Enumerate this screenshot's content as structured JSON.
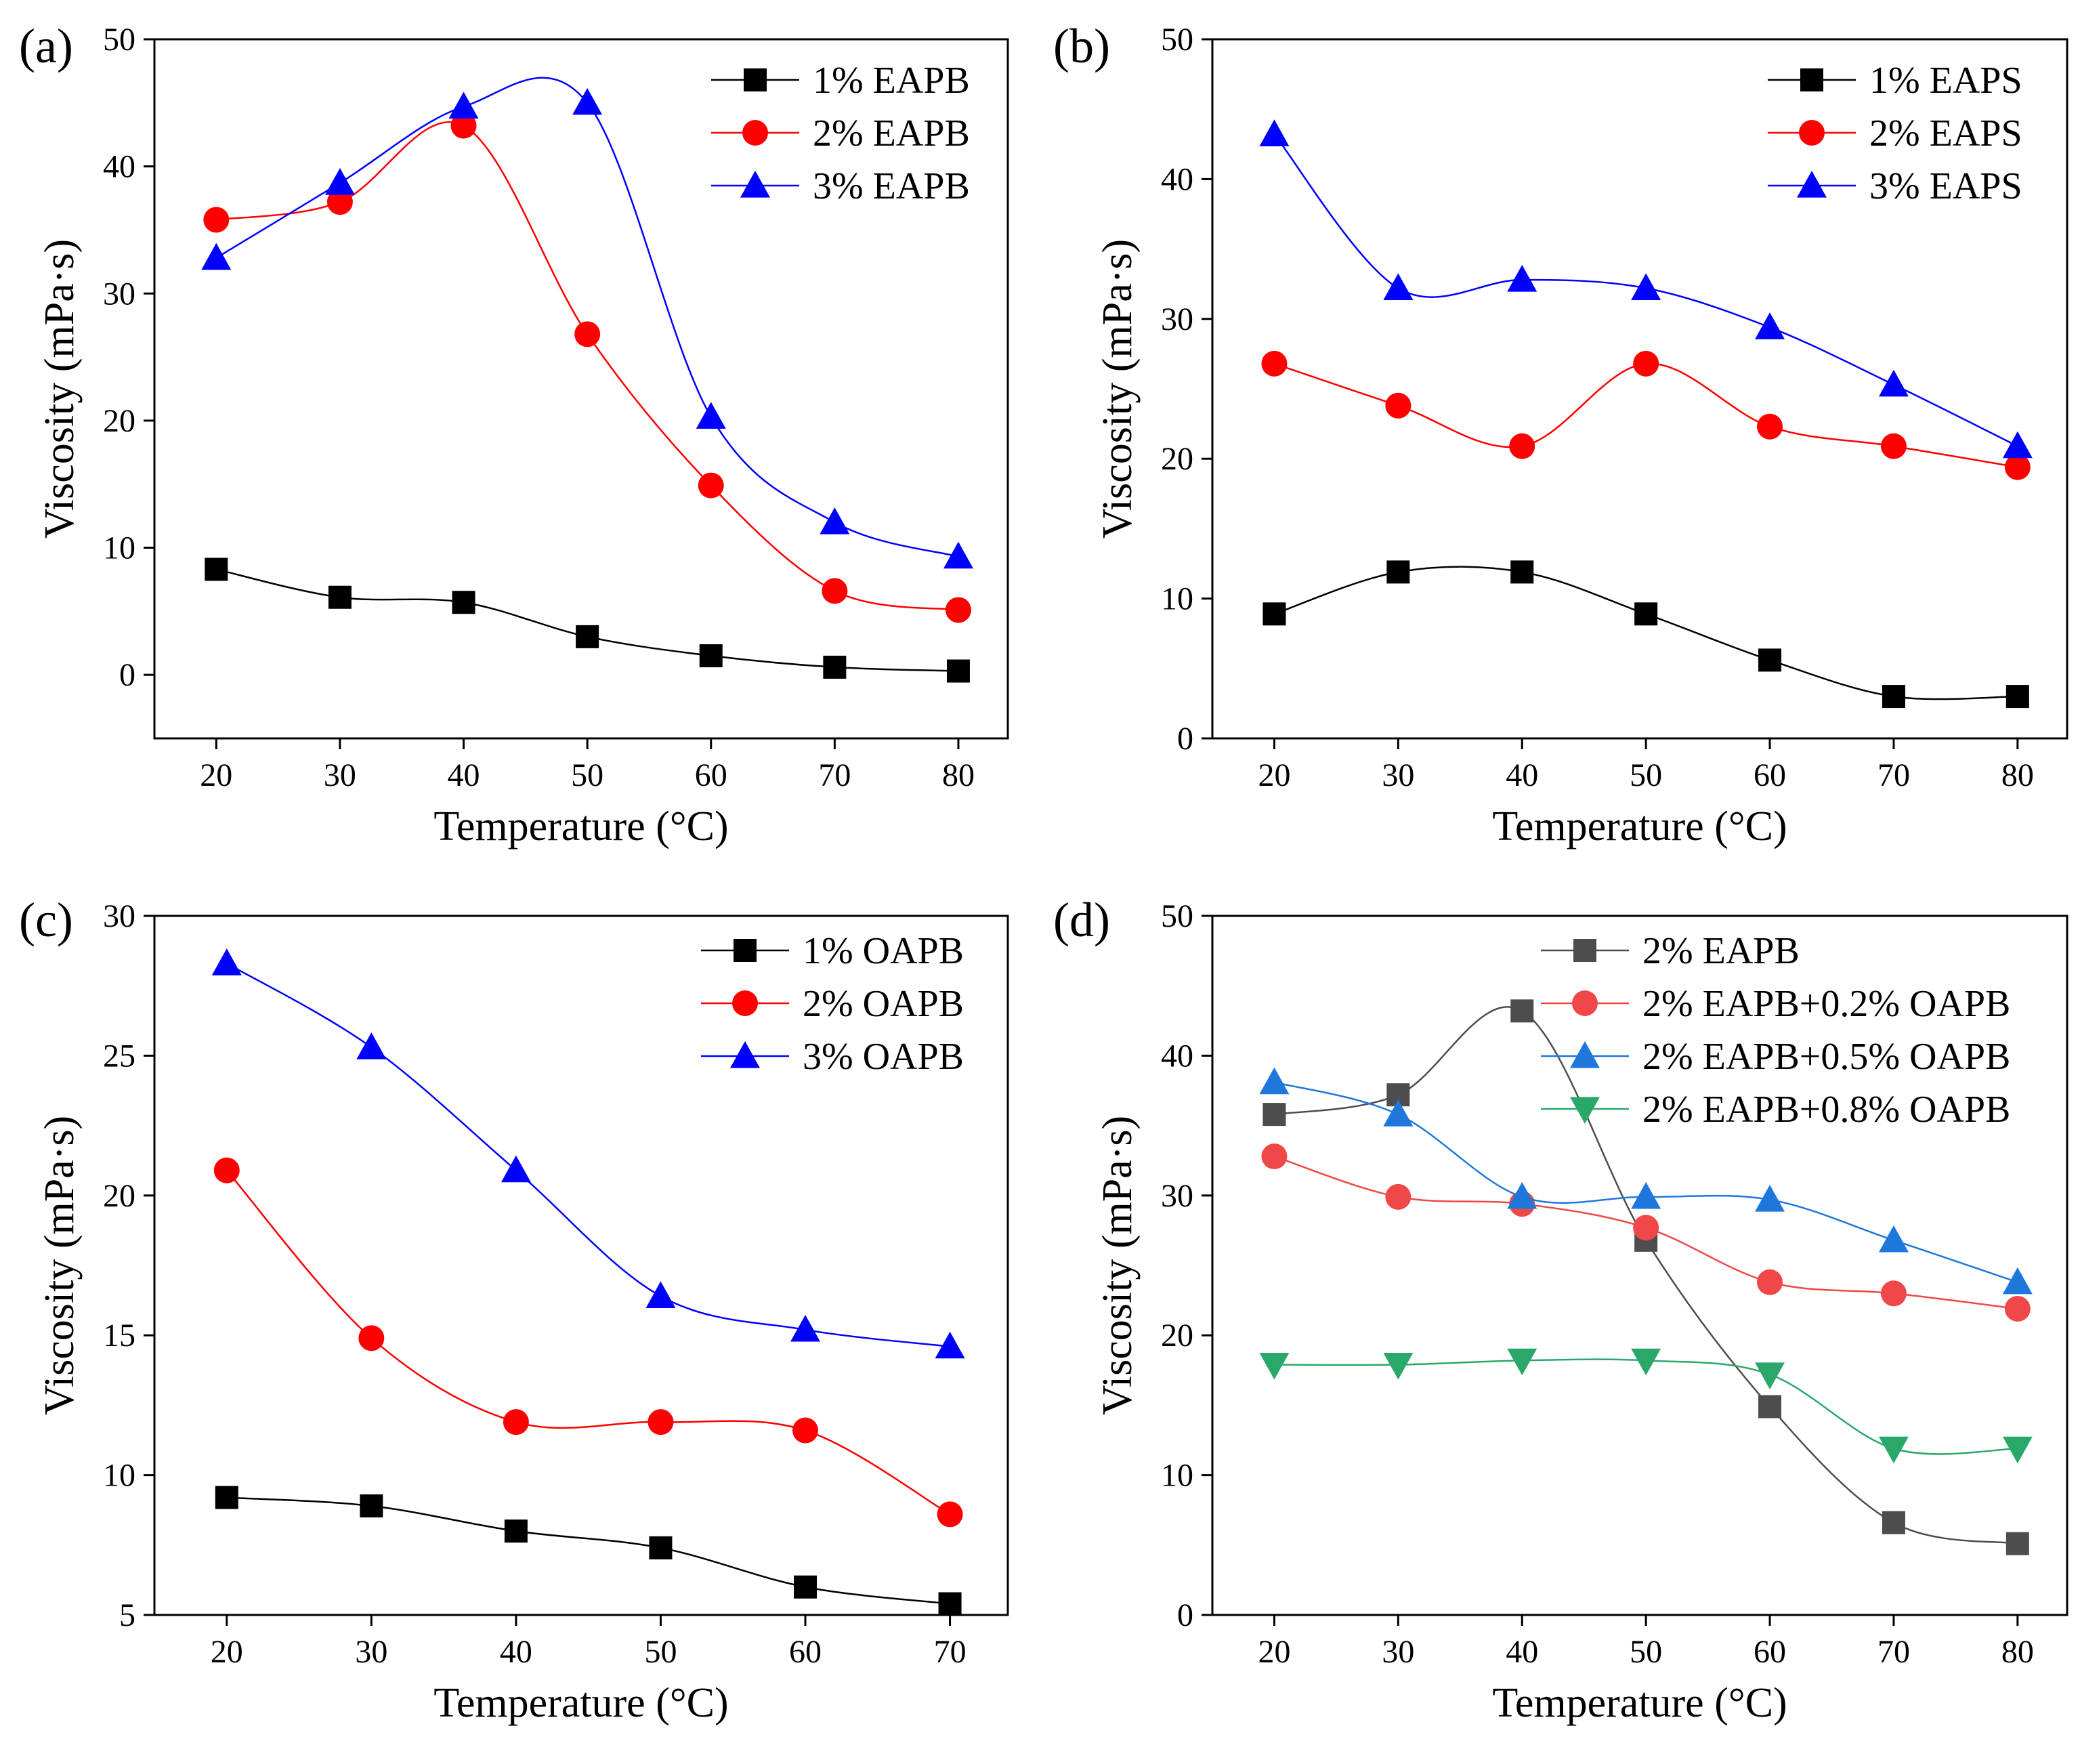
{
  "chart_data": [
    {
      "panel_label": "(a)",
      "type": "scatter",
      "xlabel": "Temperature (°C)",
      "ylabel": "Viscosity (mPa·s)",
      "xlim": [
        15,
        84
      ],
      "ylim": [
        -5,
        50
      ],
      "xticks": [
        20,
        30,
        40,
        50,
        60,
        70,
        80
      ],
      "yticks": [
        0,
        10,
        20,
        30,
        40,
        50
      ],
      "legend_position": "top-right",
      "series": [
        {
          "name": "1% EAPB",
          "color": "#000000",
          "marker": "square",
          "x": [
            20,
            30,
            40,
            50,
            60,
            70,
            80
          ],
          "values": [
            8.3,
            6.1,
            5.7,
            3.0,
            1.5,
            0.6,
            0.3
          ]
        },
        {
          "name": "2% EAPB",
          "color": "#ff0000",
          "marker": "circle",
          "x": [
            20,
            30,
            40,
            50,
            60,
            70,
            80
          ],
          "values": [
            35.8,
            37.2,
            43.2,
            26.8,
            14.9,
            6.6,
            5.1
          ]
        },
        {
          "name": "3% EAPB",
          "color": "#0000ff",
          "marker": "triangle-up",
          "x": [
            20,
            30,
            40,
            50,
            60,
            70,
            80
          ],
          "values": [
            32.8,
            38.7,
            44.7,
            45.0,
            20.3,
            12.0,
            9.3
          ]
        }
      ]
    },
    {
      "panel_label": "(b)",
      "type": "scatter",
      "xlabel": "Temperature (°C)",
      "ylabel": "Viscosity (mPa·s)",
      "xlim": [
        15,
        84
      ],
      "ylim": [
        0,
        50
      ],
      "xticks": [
        20,
        30,
        40,
        50,
        60,
        70,
        80
      ],
      "yticks": [
        0,
        10,
        20,
        30,
        40,
        50
      ],
      "legend_position": "top-right",
      "series": [
        {
          "name": "1% EAPS",
          "color": "#000000",
          "marker": "square",
          "x": [
            20,
            30,
            40,
            50,
            60,
            70,
            80
          ],
          "values": [
            8.9,
            11.9,
            11.9,
            8.9,
            5.6,
            3.0,
            3.0
          ]
        },
        {
          "name": "2% EAPS",
          "color": "#ff0000",
          "marker": "circle",
          "x": [
            20,
            30,
            40,
            50,
            60,
            70,
            80
          ],
          "values": [
            26.8,
            23.8,
            20.9,
            26.8,
            22.3,
            20.9,
            19.4
          ]
        },
        {
          "name": "3% EAPS",
          "color": "#0000ff",
          "marker": "triangle-up",
          "x": [
            20,
            30,
            40,
            50,
            60,
            70,
            80
          ],
          "values": [
            43.2,
            32.2,
            32.8,
            32.2,
            29.4,
            25.3,
            20.9
          ]
        }
      ]
    },
    {
      "panel_label": "(c)",
      "type": "scatter",
      "xlabel": "Temperature (°C)",
      "ylabel": "Viscosity (mPa·s)",
      "xlim": [
        15,
        74
      ],
      "ylim": [
        5,
        30
      ],
      "xticks": [
        20,
        30,
        40,
        50,
        60,
        70
      ],
      "yticks": [
        5,
        10,
        15,
        20,
        25,
        30
      ],
      "legend_position": "top-right",
      "series": [
        {
          "name": "1% OAPB",
          "color": "#000000",
          "marker": "square",
          "x": [
            20,
            30,
            40,
            50,
            60,
            70
          ],
          "values": [
            9.2,
            8.9,
            8.0,
            7.4,
            6.0,
            5.4
          ]
        },
        {
          "name": "2% OAPB",
          "color": "#ff0000",
          "marker": "circle",
          "x": [
            20,
            30,
            40,
            50,
            60,
            70
          ],
          "values": [
            20.9,
            14.9,
            11.9,
            11.9,
            11.6,
            8.6
          ]
        },
        {
          "name": "3% OAPB",
          "color": "#0000ff",
          "marker": "triangle-up",
          "x": [
            20,
            30,
            40,
            50,
            60,
            70
          ],
          "values": [
            28.3,
            25.3,
            20.9,
            16.4,
            15.2,
            14.6
          ]
        }
      ]
    },
    {
      "panel_label": "(d)",
      "type": "scatter",
      "xlabel": "Temperature (°C)",
      "ylabel": "Viscosity (mPa·s)",
      "xlim": [
        15,
        84
      ],
      "ylim": [
        0,
        50
      ],
      "xticks": [
        20,
        30,
        40,
        50,
        60,
        70,
        80
      ],
      "yticks": [
        0,
        10,
        20,
        30,
        40,
        50
      ],
      "legend_position": "top-right",
      "series": [
        {
          "name": "2% EAPB",
          "color": "#4d4d4d",
          "marker": "square",
          "x": [
            20,
            30,
            40,
            50,
            60,
            70,
            80
          ],
          "values": [
            35.8,
            37.2,
            43.2,
            26.8,
            14.9,
            6.6,
            5.1
          ]
        },
        {
          "name": "2% EAPB+0.2% OAPB",
          "color": "#f04848",
          "marker": "circle",
          "x": [
            20,
            30,
            40,
            50,
            60,
            70,
            80
          ],
          "values": [
            32.8,
            29.9,
            29.4,
            27.7,
            23.8,
            23.0,
            21.9
          ]
        },
        {
          "name": "2% EAPB+0.5% OAPB",
          "color": "#1e78dc",
          "marker": "triangle-up",
          "x": [
            20,
            30,
            40,
            50,
            60,
            70,
            80
          ],
          "values": [
            38.1,
            35.8,
            29.9,
            29.9,
            29.7,
            26.8,
            23.8
          ]
        },
        {
          "name": "2% EAPB+0.8% OAPB",
          "color": "#2aa86a",
          "marker": "triangle-down",
          "x": [
            20,
            30,
            40,
            50,
            60,
            70,
            80
          ],
          "values": [
            17.9,
            17.9,
            18.2,
            18.2,
            17.2,
            11.9,
            11.9
          ]
        }
      ]
    }
  ]
}
